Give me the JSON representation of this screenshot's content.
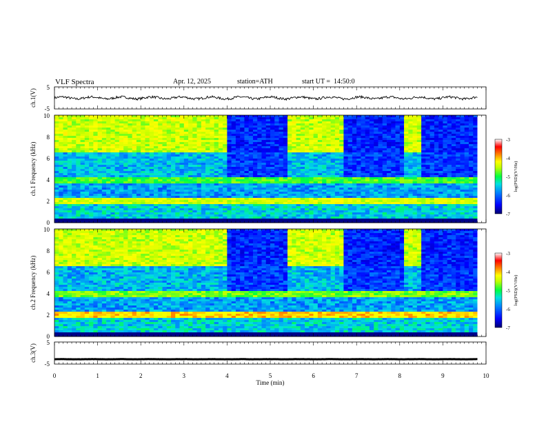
{
  "header": {
    "title": "VLF Spectra",
    "date": "Apr. 12, 2025",
    "station": "station=ATH",
    "start": "start UT =  14:50:0"
  },
  "chart_data": [
    {
      "type": "line",
      "id": "ch1-waveform",
      "ylabel": "ch.1(V)",
      "ylim": [
        -5,
        5
      ],
      "y_ticks": [
        "5",
        "-5"
      ],
      "xlim": [
        0,
        10
      ],
      "trace_mean": 0,
      "line_color": "#000000"
    },
    {
      "type": "heatmap",
      "id": "ch1-spectrogram",
      "ylabel": "ch.1 Frequency (kHz)",
      "ylim": [
        0,
        10
      ],
      "y_ticks": [
        "0",
        "2",
        "4",
        "6",
        "8",
        "10"
      ],
      "xlim": [
        0,
        9.8
      ],
      "colorbar": {
        "label": "log(PSD)(V²/Hz)",
        "range": [
          -7,
          -3
        ],
        "ticks": [
          "-3",
          "-4",
          "-5",
          "-6",
          "-7"
        ]
      },
      "dark_quiet_intervals_min": [
        [
          4.0,
          5.45
        ],
        [
          6.7,
          8.15
        ],
        [
          8.55,
          9.8
        ]
      ]
    },
    {
      "type": "heatmap",
      "id": "ch2-spectrogram",
      "ylabel": "ch.2 Frequency (kHz)",
      "ylim": [
        0,
        10
      ],
      "y_ticks": [
        "0",
        "2",
        "4",
        "6",
        "8",
        "10"
      ],
      "xlim": [
        0,
        9.8
      ],
      "colorbar": {
        "label": "log(PSD)(V²/Hz)",
        "range": [
          -7,
          -3
        ],
        "ticks": [
          "-3",
          "-4",
          "-5",
          "-6",
          "-7"
        ]
      },
      "dark_quiet_intervals_min": [
        [
          4.0,
          5.45
        ],
        [
          6.7,
          8.15
        ],
        [
          8.55,
          9.8
        ]
      ]
    },
    {
      "type": "line",
      "id": "ch3-waveform",
      "ylabel": "ch.3(V)",
      "ylim": [
        -5,
        5
      ],
      "y_ticks": [
        "5",
        "-5"
      ],
      "xlim": [
        0,
        10
      ],
      "trace_mean": -2.8,
      "line_color": "#000000"
    }
  ],
  "x_axis": {
    "label": "Time (min)",
    "range": [
      0,
      10
    ],
    "ticks": [
      "0",
      "1",
      "2",
      "3",
      "4",
      "5",
      "6",
      "7",
      "8",
      "9",
      "10"
    ]
  },
  "colormap": [
    "#000070",
    "#0000ff",
    "#0080ff",
    "#00e0e0",
    "#00ff40",
    "#c0ff00",
    "#ffff00",
    "#ff8000",
    "#ff0000",
    "#ffffff"
  ]
}
